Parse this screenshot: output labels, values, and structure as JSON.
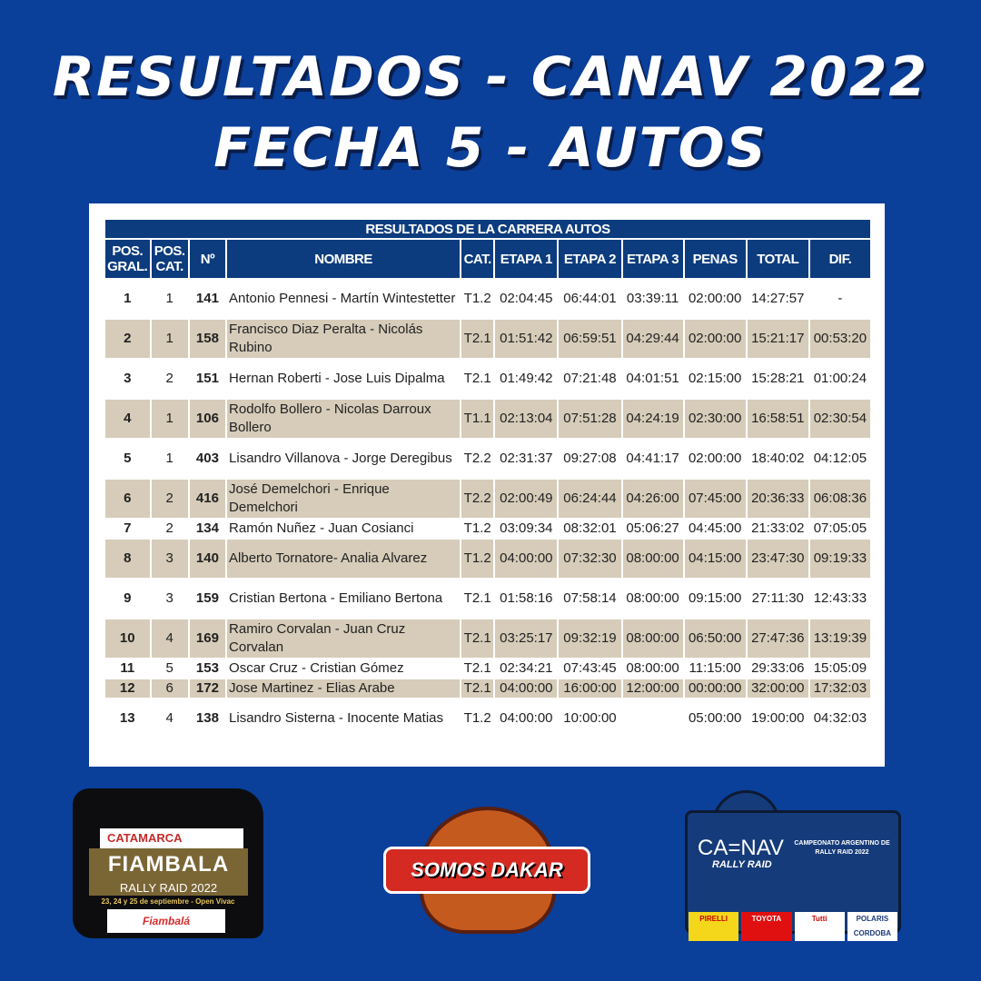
{
  "header": {
    "line1": "RESULTADOS - CANAV 2022",
    "line2": "FECHA 5 - AUTOS"
  },
  "table": {
    "caption": "RESULTADOS DE LA CARRERA AUTOS",
    "columns": [
      "POS. GRAL.",
      "POS. CAT.",
      "Nº",
      "NOMBRE",
      "CAT.",
      "ETAPA 1",
      "ETAPA 2",
      "ETAPA 3",
      "PENAS",
      "TOTAL",
      "DIF."
    ],
    "rows": [
      [
        "1",
        "1",
        "141",
        "Antonio Pennesi - Martín Wintestetter",
        "T1.2",
        "02:04:45",
        "06:44:01",
        "03:39:11",
        "02:00:00",
        "14:27:57",
        "-"
      ],
      [
        "2",
        "1",
        "158",
        "Francisco Diaz Peralta - Nicolás Rubino",
        "T2.1",
        "01:51:42",
        "06:59:51",
        "04:29:44",
        "02:00:00",
        "15:21:17",
        "00:53:20"
      ],
      [
        "3",
        "2",
        "151",
        "Hernan Roberti - Jose Luis Dipalma",
        "T2.1",
        "01:49:42",
        "07:21:48",
        "04:01:51",
        "02:15:00",
        "15:28:21",
        "01:00:24"
      ],
      [
        "4",
        "1",
        "106",
        "Rodolfo Bollero - Nicolas Darroux Bollero",
        "T1.1",
        "02:13:04",
        "07:51:28",
        "04:24:19",
        "02:30:00",
        "16:58:51",
        "02:30:54"
      ],
      [
        "5",
        "1",
        "403",
        "Lisandro Villanova - Jorge Deregibus",
        "T2.2",
        "02:31:37",
        "09:27:08",
        "04:41:17",
        "02:00:00",
        "18:40:02",
        "04:12:05"
      ],
      [
        "6",
        "2",
        "416",
        "José Demelchori - Enrique Demelchori",
        "T2.2",
        "02:00:49",
        "06:24:44",
        "04:26:00",
        "07:45:00",
        "20:36:33",
        "06:08:36"
      ],
      [
        "7",
        "2",
        "134",
        "Ramón Nuñez - Juan Cosianci",
        "T1.2",
        "03:09:34",
        "08:32:01",
        "05:06:27",
        "04:45:00",
        "21:33:02",
        "07:05:05"
      ],
      [
        "8",
        "3",
        "140",
        "Alberto Tornatore- Analia Alvarez",
        "T1.2",
        "04:00:00",
        "07:32:30",
        "08:00:00",
        "04:15:00",
        "23:47:30",
        "09:19:33"
      ],
      [
        "9",
        "3",
        "159",
        "Cristian Bertona - Emiliano Bertona",
        "T2.1",
        "01:58:16",
        "07:58:14",
        "08:00:00",
        "09:15:00",
        "27:11:30",
        "12:43:33"
      ],
      [
        "10",
        "4",
        "169",
        "Ramiro Corvalan - Juan Cruz Corvalan",
        "T2.1",
        "03:25:17",
        "09:32:19",
        "08:00:00",
        "06:50:00",
        "27:47:36",
        "13:19:39"
      ],
      [
        "11",
        "5",
        "153",
        "Oscar Cruz - Cristian Gómez",
        "T2.1",
        "02:34:21",
        "07:43:45",
        "08:00:00",
        "11:15:00",
        "29:33:06",
        "15:05:09"
      ],
      [
        "12",
        "6",
        "172",
        "Jose Martinez - Elias Arabe",
        "T2.1",
        "04:00:00",
        "16:00:00",
        "12:00:00",
        "00:00:00",
        "32:00:00",
        "17:32:03"
      ],
      [
        "13",
        "4",
        "138",
        "Lisandro Sisterna - Inocente Matias",
        "T1.2",
        "04:00:00",
        "10:00:00",
        "",
        "05:00:00",
        "19:00:00",
        "04:32:03"
      ]
    ]
  },
  "logos": {
    "fiambala": {
      "top": "CATAMARCA",
      "name": "FIAMBALA",
      "sub": "RALLY RAID 2022",
      "dates": "23, 24 y 25 de septiembre - Open Vivac",
      "town": "Fiambalá"
    },
    "dakar": {
      "name": "SOMOS DAKAR"
    },
    "canav": {
      "brand": "CA=NAV",
      "sub": "RALLY RAID",
      "champ": "CAMPEONATO ARGENTINO DE RALLY RAID 2022",
      "sponsors": [
        "PIRELLI",
        "TOYOTA",
        "Tutti",
        "POLARIS CORDOBA"
      ]
    }
  },
  "colors": {
    "background": "#0a3f9a",
    "header_cell": "#0c3c7e",
    "alt_row": "#d6ccb9"
  }
}
